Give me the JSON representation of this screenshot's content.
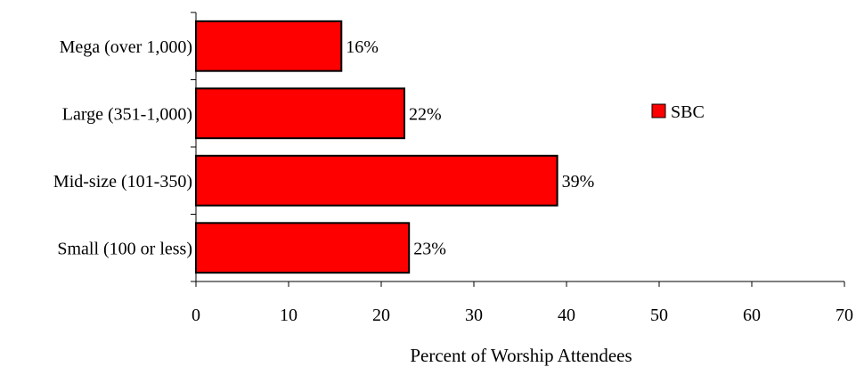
{
  "chart_data": {
    "type": "bar",
    "orientation": "horizontal",
    "title": "",
    "xlabel": "Percent of Worship Attendees",
    "ylabel": "",
    "xlim": [
      0,
      70
    ],
    "x_ticks": [
      "0",
      "10",
      "20",
      "30",
      "40",
      "50",
      "60",
      "70"
    ],
    "categories": [
      "Mega (over 1,000)",
      "Large (351-1,000)",
      "Mid-size (101-350)",
      "Small (100 or less)"
    ],
    "series": [
      {
        "name": "SBC",
        "values": [
          15.7,
          22.5,
          39.0,
          23.0
        ],
        "data_labels": [
          "16%",
          "22%",
          "39%",
          "23%"
        ],
        "color": "#ff0000"
      }
    ],
    "legend_position": "right",
    "grid": false
  }
}
